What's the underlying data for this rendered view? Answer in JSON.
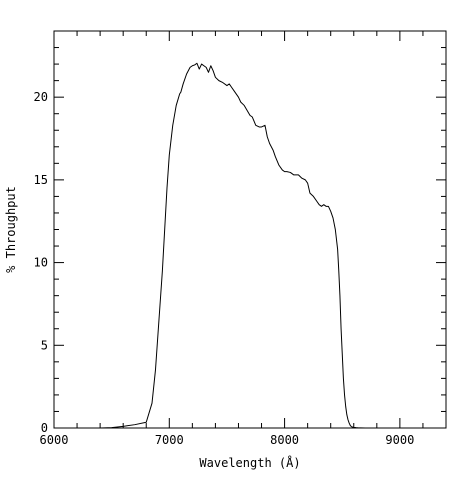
{
  "chart_data": {
    "type": "line",
    "title": "",
    "xlabel": "Wavelength (Å)",
    "ylabel": "% Throughput",
    "xlim": [
      6000,
      9400
    ],
    "ylim": [
      0,
      24
    ],
    "x_ticks": [
      6000,
      7000,
      8000,
      9000
    ],
    "y_ticks": [
      0,
      5,
      10,
      15,
      20
    ],
    "grid": false,
    "legend": "none",
    "line_color": "#000000",
    "series": [
      {
        "x": [
          6000,
          6200,
          6400,
          6500,
          6600,
          6700,
          6800,
          6850,
          6880,
          6910,
          6940,
          6960,
          6980,
          7000,
          7030,
          7060,
          7090,
          7100,
          7120,
          7150,
          7180,
          7200,
          7220,
          7240,
          7260,
          7280,
          7300,
          7320,
          7340,
          7360,
          7380,
          7400,
          7430,
          7460,
          7500,
          7520,
          7540,
          7560,
          7600,
          7620,
          7650,
          7700,
          7720,
          7750,
          7780,
          7800,
          7830,
          7850,
          7870,
          7900,
          7920,
          7950,
          7980,
          8000,
          8020,
          8050,
          8080,
          8100,
          8120,
          8150,
          8180,
          8200,
          8220,
          8250,
          8280,
          8300,
          8320,
          8340,
          8360,
          8380,
          8400,
          8420,
          8440,
          8460,
          8470,
          8480,
          8490,
          8500,
          8510,
          8520,
          8530,
          8540,
          8550,
          8560,
          8570,
          8580,
          8600,
          8620,
          8640,
          8660,
          8700,
          8800,
          9000,
          9400
        ],
        "y": [
          0,
          0,
          0,
          0.02,
          0.1,
          0.2,
          0.35,
          1.5,
          3.5,
          6.5,
          9.5,
          12.0,
          14.5,
          16.5,
          18.3,
          19.5,
          20.2,
          20.3,
          20.8,
          21.4,
          21.8,
          21.9,
          21.95,
          22.05,
          21.7,
          22.0,
          21.9,
          21.8,
          21.5,
          21.9,
          21.6,
          21.2,
          21.0,
          20.9,
          20.7,
          20.8,
          20.6,
          20.4,
          20.0,
          19.7,
          19.5,
          18.9,
          18.8,
          18.3,
          18.2,
          18.2,
          18.3,
          17.6,
          17.2,
          16.8,
          16.4,
          15.9,
          15.6,
          15.5,
          15.5,
          15.45,
          15.3,
          15.3,
          15.3,
          15.1,
          15.0,
          14.8,
          14.2,
          14.0,
          13.7,
          13.5,
          13.4,
          13.5,
          13.4,
          13.4,
          13.1,
          12.7,
          12.0,
          10.8,
          9.5,
          8.0,
          6.0,
          4.5,
          3.0,
          2.0,
          1.3,
          0.8,
          0.5,
          0.3,
          0.15,
          0.08,
          0.04,
          0.02,
          0.01,
          0.01,
          0,
          0,
          0,
          0
        ]
      }
    ]
  }
}
